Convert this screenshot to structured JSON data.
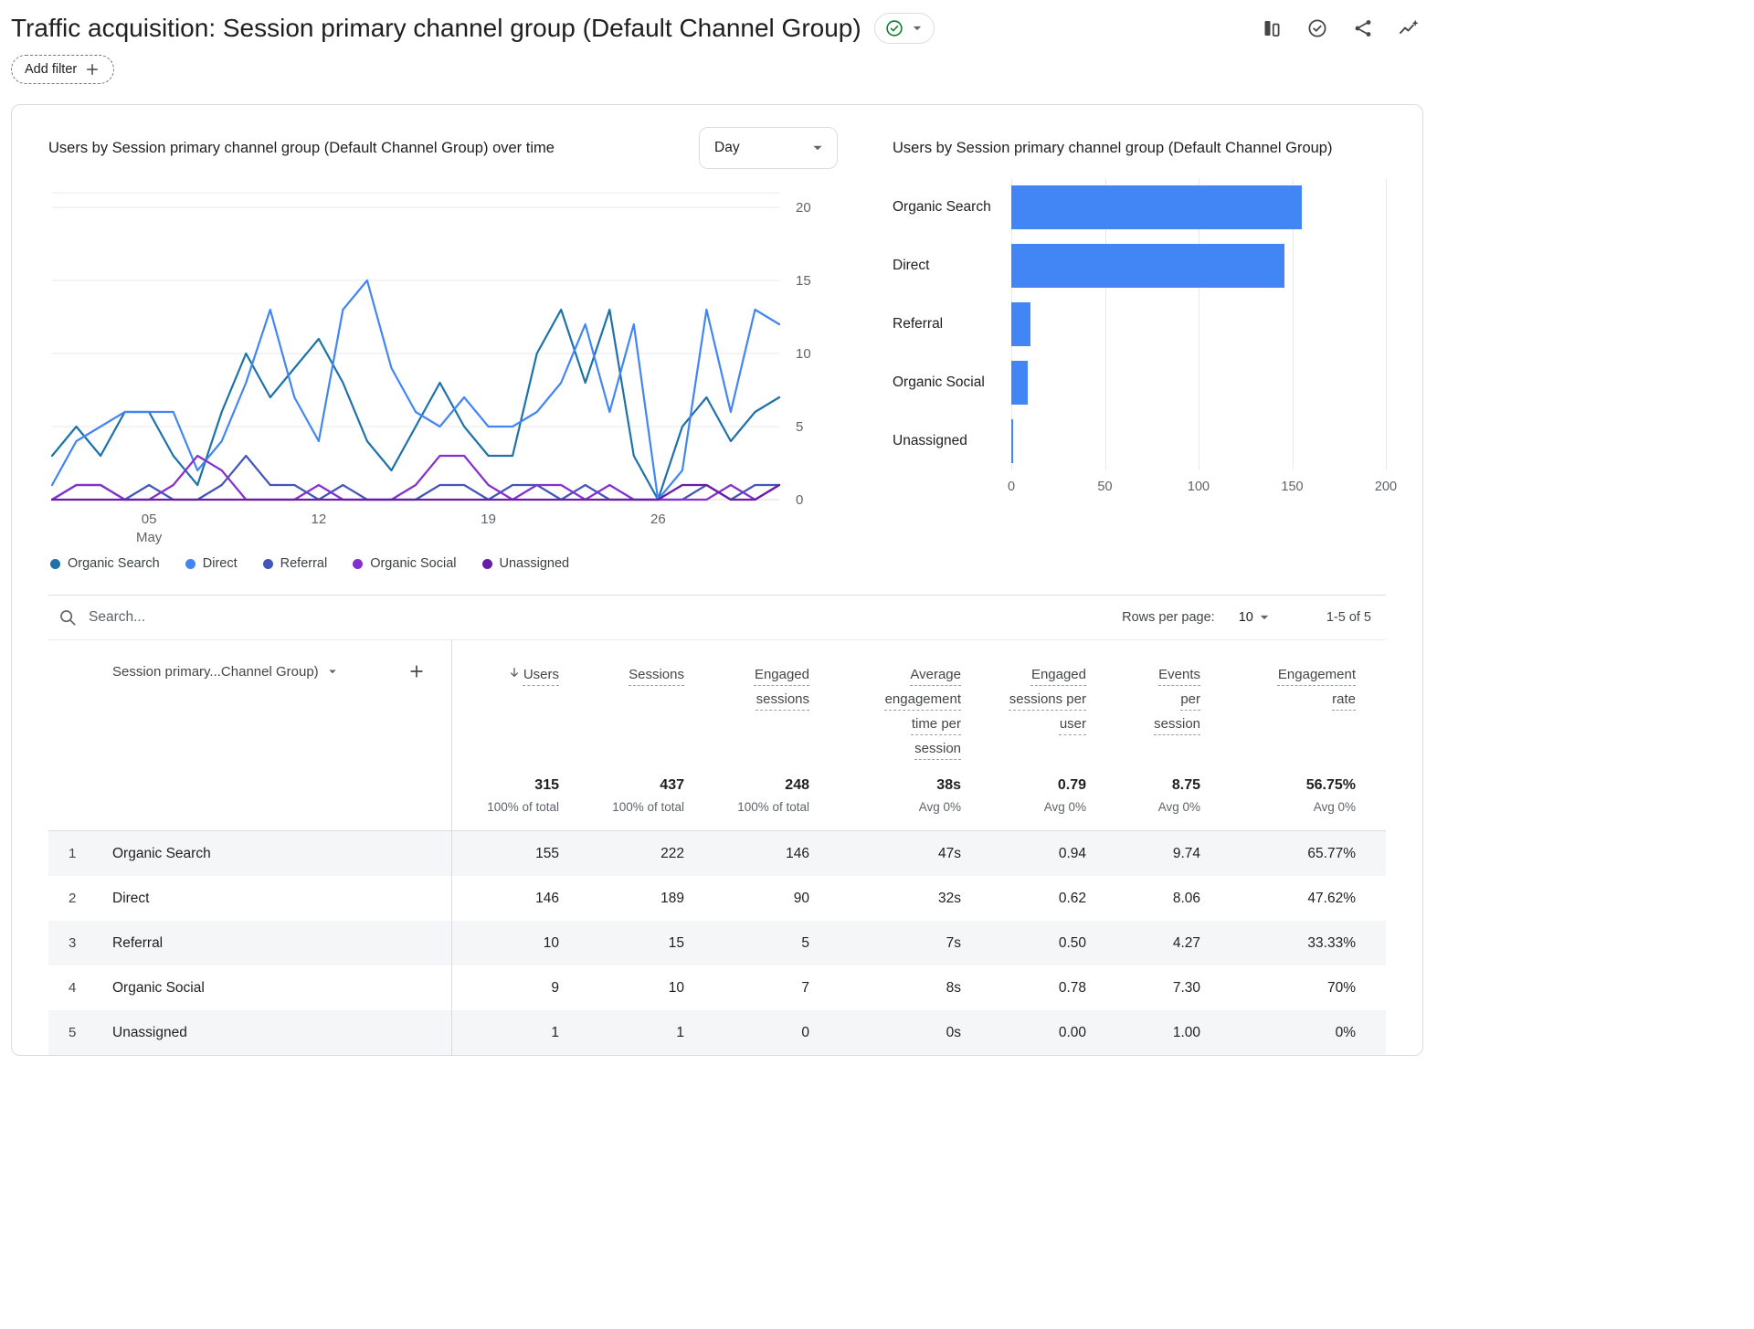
{
  "header": {
    "title": "Traffic acquisition: Session primary channel group (Default Channel Group)",
    "add_filter_label": "Add filter",
    "toolbar_icons": [
      "comparison-icon",
      "check-circle-icon",
      "share-icon",
      "insights-icon"
    ],
    "title_badge_icon": "check-circle-icon"
  },
  "colors": {
    "accent_blue": "#4285f4",
    "badge_green": "#188038",
    "grid_line": "#e8eaed",
    "text_secondary": "#5f6368"
  },
  "chart_data": [
    {
      "type": "line",
      "title": "Users by Session primary channel group (Default Channel Group) over time",
      "interval_label": "Day",
      "y_ticks": [
        0,
        5,
        10,
        15,
        20
      ],
      "y_max": 21,
      "x_ticks": [
        {
          "day": 5,
          "label": "05",
          "sub": "May"
        },
        {
          "day": 12,
          "label": "12"
        },
        {
          "day": 19,
          "label": "19"
        },
        {
          "day": 26,
          "label": "26"
        }
      ],
      "x_range_days": 31,
      "legend_position": "bottom",
      "series": [
        {
          "name": "Organic Search",
          "color": "#1d72aa",
          "values": [
            3,
            5,
            3,
            6,
            6,
            3,
            1,
            6,
            10,
            7,
            9,
            11,
            8,
            4,
            2,
            5,
            8,
            5,
            3,
            3,
            10,
            13,
            8,
            13,
            3,
            0,
            5,
            7,
            4,
            6,
            7
          ]
        },
        {
          "name": "Direct",
          "color": "#4285f4",
          "values": [
            1,
            4,
            5,
            6,
            6,
            6,
            2,
            4,
            8,
            13,
            7,
            4,
            13,
            15,
            9,
            6,
            5,
            7,
            5,
            5,
            6,
            8,
            12,
            6,
            12,
            0,
            2,
            13,
            6,
            13,
            12
          ]
        },
        {
          "name": "Referral",
          "color": "#4355b9",
          "values": [
            0,
            1,
            1,
            0,
            1,
            0,
            0,
            1,
            3,
            1,
            1,
            0,
            1,
            0,
            0,
            0,
            1,
            1,
            0,
            1,
            1,
            0,
            1,
            0,
            0,
            0,
            0,
            1,
            0,
            1,
            1
          ]
        },
        {
          "name": "Organic Social",
          "color": "#8430ce",
          "values": [
            0,
            1,
            1,
            0,
            0,
            1,
            3,
            2,
            0,
            0,
            0,
            1,
            0,
            0,
            0,
            1,
            3,
            3,
            1,
            0,
            1,
            1,
            0,
            1,
            0,
            0,
            0,
            0,
            1,
            0,
            1
          ]
        },
        {
          "name": "Unassigned",
          "color": "#681da8",
          "values": [
            0,
            0,
            0,
            0,
            0,
            0,
            0,
            0,
            0,
            0,
            0,
            0,
            0,
            0,
            0,
            0,
            0,
            0,
            0,
            0,
            0,
            0,
            0,
            0,
            0,
            0,
            1,
            1,
            0,
            0,
            1
          ]
        }
      ]
    },
    {
      "type": "bar",
      "orientation": "horizontal",
      "title": "Users by Session primary channel group (Default Channel Group)",
      "categories": [
        "Organic Search",
        "Direct",
        "Referral",
        "Organic Social",
        "Unassigned"
      ],
      "values": [
        155,
        146,
        10,
        9,
        1
      ],
      "x_ticks": [
        0,
        50,
        100,
        150,
        200
      ],
      "x_max": 200,
      "bar_color": "#4285f4"
    }
  ],
  "table": {
    "search_placeholder": "Search...",
    "rows_per_page_label": "Rows per page:",
    "rows_per_page_value": "10",
    "pagination": "1-5 of 5",
    "dimension_header": "Session primary...Channel Group)",
    "metric_columns": [
      {
        "label": "Users",
        "sorted": true
      },
      {
        "label": "Sessions"
      },
      {
        "label": "Engaged sessions"
      },
      {
        "label": "Average engagement time per session"
      },
      {
        "label": "Engaged sessions per user"
      },
      {
        "label": "Events per session"
      },
      {
        "label": "Engagement rate"
      }
    ],
    "totals": {
      "values": [
        "315",
        "437",
        "248",
        "38s",
        "0.79",
        "8.75",
        "56.75%"
      ],
      "subtexts": [
        "100% of total",
        "100% of total",
        "100% of total",
        "Avg 0%",
        "Avg 0%",
        "Avg 0%",
        "Avg 0%"
      ]
    },
    "rows": [
      {
        "num": "1",
        "channel": "Organic Search",
        "values": [
          "155",
          "222",
          "146",
          "47s",
          "0.94",
          "9.74",
          "65.77%"
        ]
      },
      {
        "num": "2",
        "channel": "Direct",
        "values": [
          "146",
          "189",
          "90",
          "32s",
          "0.62",
          "8.06",
          "47.62%"
        ]
      },
      {
        "num": "3",
        "channel": "Referral",
        "values": [
          "10",
          "15",
          "5",
          "7s",
          "0.50",
          "4.27",
          "33.33%"
        ]
      },
      {
        "num": "4",
        "channel": "Organic Social",
        "values": [
          "9",
          "10",
          "7",
          "8s",
          "0.78",
          "7.30",
          "70%"
        ]
      },
      {
        "num": "5",
        "channel": "Unassigned",
        "values": [
          "1",
          "1",
          "0",
          "0s",
          "0.00",
          "1.00",
          "0%"
        ]
      }
    ]
  }
}
